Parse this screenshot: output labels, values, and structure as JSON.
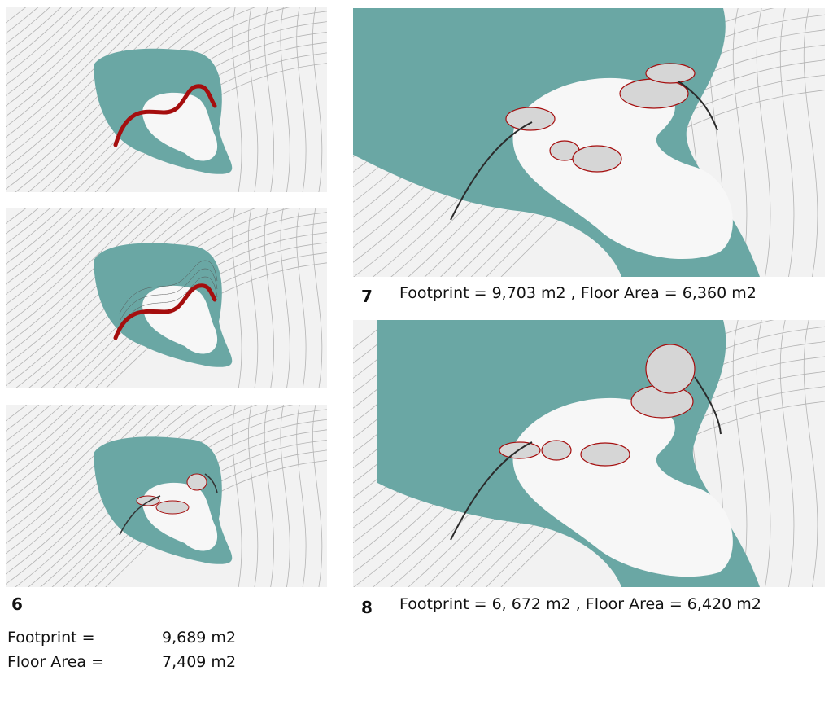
{
  "figure": {
    "colors": {
      "pond": "#6aa7a4",
      "ground": "#f2f2f2",
      "contour": "#b3b3b3",
      "path": "#a50e0e",
      "mesh": "#3a3a3a",
      "roof": "#d6d6d6"
    },
    "icons": [
      "terrain-panel",
      "pond-shape",
      "red-path-curve",
      "mesh-structure"
    ]
  },
  "option6": {
    "number": "6",
    "footprint_label": "Footprint =",
    "footprint_value": "9,689 m2",
    "floor_label": "Floor Area =",
    "floor_value": "7,409 m2"
  },
  "option7": {
    "number": "7",
    "caption": "Footprint = 9,703 m2  ,  Floor Area = 6,360 m2"
  },
  "option8": {
    "number": "8",
    "caption": "Footprint = 6, 672 m2 , Floor Area = 6,420 m2"
  }
}
